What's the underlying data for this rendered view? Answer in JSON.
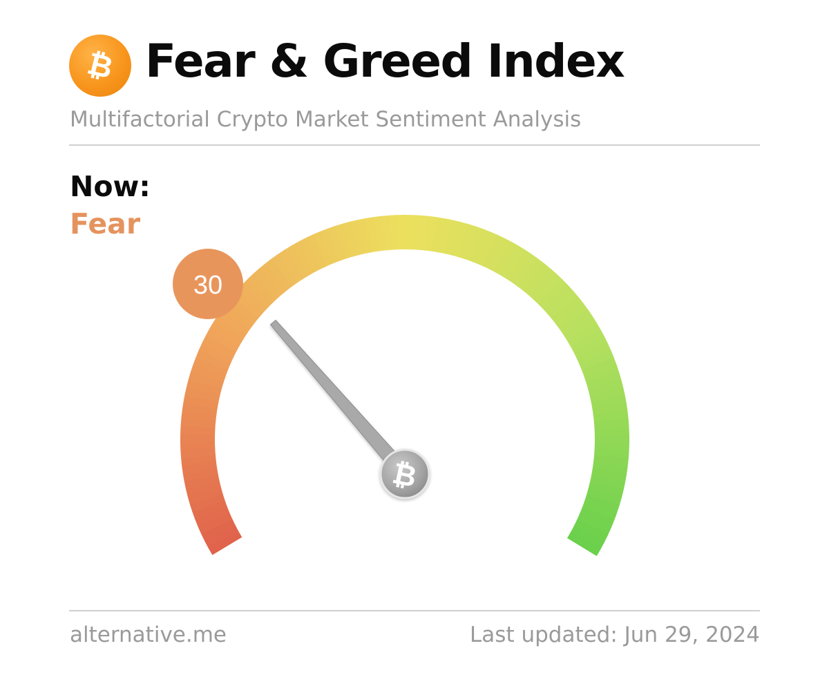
{
  "header": {
    "title": "Fear & Greed Index",
    "subtitle": "Multifactorial Crypto Market Sentiment Analysis",
    "logo_icon": "bitcoin-icon"
  },
  "current": {
    "label": "Now:",
    "classification": "Fear"
  },
  "chart_data": {
    "type": "gauge",
    "value": 30,
    "range": [
      0,
      100
    ],
    "value_label": "30",
    "colors": {
      "low": "#e0634b",
      "mid_low": "#f0a55a",
      "mid": "#ece05e",
      "mid_high": "#b7e05f",
      "high": "#6bd04c",
      "badge": "#e8955c",
      "classification": "#e5935e",
      "needle": "#a9a9a9"
    }
  },
  "footer": {
    "source": "alternative.me",
    "updated": "Last updated: Jun 29, 2024"
  }
}
